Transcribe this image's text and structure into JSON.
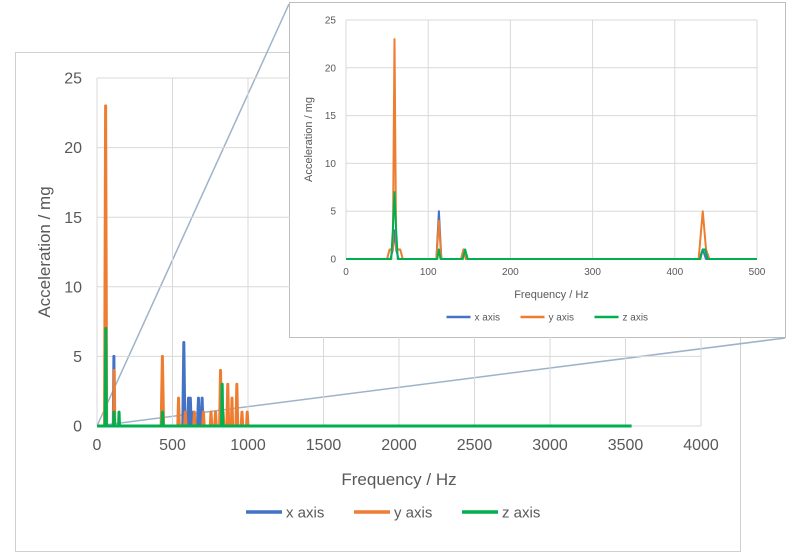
{
  "chart_data": [
    {
      "id": "main",
      "type": "line",
      "xlabel": "Frequency / Hz",
      "ylabel": "Acceleration / mg",
      "xlim": [
        0,
        4000
      ],
      "ylim": [
        0,
        25
      ],
      "xticks": [
        "0",
        "500",
        "1000",
        "1500",
        "2000",
        "2500",
        "3000",
        "3500",
        "4000"
      ],
      "yticks": [
        "0",
        "5",
        "10",
        "15",
        "20",
        "25"
      ],
      "grid": true,
      "legend_position": "bottom",
      "series": [
        {
          "name": "x axis",
          "color": "#4472C4",
          "points": [
            [
              0,
              0
            ],
            [
              55,
              0
            ],
            [
              58,
              0.5
            ],
            [
              60,
              0
            ],
            [
              108,
              0
            ],
            [
              112,
              5
            ],
            [
              115,
              0
            ],
            [
              430,
              0
            ],
            [
              435,
              1
            ],
            [
              440,
              0
            ],
            [
              568,
              0
            ],
            [
              575,
              6
            ],
            [
              582,
              0
            ],
            [
              600,
              0
            ],
            [
              606,
              2
            ],
            [
              612,
              0
            ],
            [
              618,
              2
            ],
            [
              624,
              0
            ],
            [
              635,
              0
            ],
            [
              640,
              1
            ],
            [
              645,
              0
            ],
            [
              665,
              0
            ],
            [
              672,
              2
            ],
            [
              678,
              0
            ],
            [
              690,
              0
            ],
            [
              696,
              2
            ],
            [
              702,
              0
            ],
            [
              1010,
              0
            ],
            [
              3540,
              0
            ]
          ]
        },
        {
          "name": "y axis",
          "color": "#ED7D31",
          "points": [
            [
              0,
              0
            ],
            [
              50,
              0
            ],
            [
              57,
              23
            ],
            [
              64,
              0
            ],
            [
              110,
              0
            ],
            [
              114,
              4
            ],
            [
              118,
              0
            ],
            [
              425,
              0
            ],
            [
              433,
              5
            ],
            [
              441,
              0
            ],
            [
              535,
              0
            ],
            [
              540,
              2
            ],
            [
              545,
              0
            ],
            [
              580,
              0
            ],
            [
              585,
              1
            ],
            [
              590,
              0
            ],
            [
              640,
              0
            ],
            [
              645,
              1
            ],
            [
              650,
              0
            ],
            [
              700,
              0
            ],
            [
              705,
              1
            ],
            [
              710,
              0
            ],
            [
              750,
              0
            ],
            [
              755,
              1
            ],
            [
              760,
              0
            ],
            [
              780,
              0
            ],
            [
              785,
              1
            ],
            [
              790,
              0
            ],
            [
              812,
              0
            ],
            [
              818,
              4
            ],
            [
              824,
              0
            ],
            [
              830,
              0
            ],
            [
              835,
              1
            ],
            [
              840,
              0
            ],
            [
              860,
              0
            ],
            [
              866,
              3
            ],
            [
              872,
              0
            ],
            [
              890,
              0
            ],
            [
              894,
              2
            ],
            [
              898,
              0
            ],
            [
              920,
              0
            ],
            [
              926,
              3
            ],
            [
              932,
              0
            ],
            [
              955,
              0
            ],
            [
              960,
              1
            ],
            [
              965,
              0
            ],
            [
              990,
              0
            ],
            [
              995,
              1
            ],
            [
              1000,
              0
            ],
            [
              3540,
              0
            ]
          ]
        },
        {
          "name": "z axis",
          "color": "#00B050",
          "points": [
            [
              0,
              0
            ],
            [
              54,
              0
            ],
            [
              58,
              7
            ],
            [
              62,
              0
            ],
            [
              110,
              0
            ],
            [
              113,
              1
            ],
            [
              116,
              0
            ],
            [
              143,
              0
            ],
            [
              146,
              1
            ],
            [
              149,
              0
            ],
            [
              430,
              0
            ],
            [
              434,
              1
            ],
            [
              438,
              0
            ],
            [
              825,
              0
            ],
            [
              829,
              3
            ],
            [
              833,
              0
            ],
            [
              3540,
              0
            ]
          ]
        }
      ]
    },
    {
      "id": "inset",
      "type": "line",
      "xlabel": "Frequency / Hz",
      "ylabel": "Acceleration / mg",
      "xlim": [
        0,
        500
      ],
      "ylim": [
        0,
        25
      ],
      "xticks": [
        "0",
        "100",
        "200",
        "300",
        "400",
        "500"
      ],
      "yticks": [
        "0",
        "5",
        "10",
        "15",
        "20",
        "25"
      ],
      "grid": true,
      "legend_position": "bottom",
      "series": [
        {
          "name": "x axis",
          "color": "#4472C4",
          "points": [
            [
              0,
              0
            ],
            [
              54,
              0
            ],
            [
              57,
              1
            ],
            [
              59,
              3
            ],
            [
              61,
              1
            ],
            [
              64,
              0
            ],
            [
              110,
              0
            ],
            [
              113,
              5
            ],
            [
              116,
              0
            ],
            [
              140,
              0
            ],
            [
              143,
              1
            ],
            [
              146,
              0
            ],
            [
              430,
              0
            ],
            [
              434,
              1
            ],
            [
              438,
              0
            ],
            [
              500,
              0
            ]
          ]
        },
        {
          "name": "y axis",
          "color": "#ED7D31",
          "points": [
            [
              0,
              0
            ],
            [
              50,
              0
            ],
            [
              53,
              1
            ],
            [
              57,
              1
            ],
            [
              59,
              23
            ],
            [
              61,
              1
            ],
            [
              66,
              1
            ],
            [
              69,
              0
            ],
            [
              110,
              0
            ],
            [
              113,
              4
            ],
            [
              116,
              0
            ],
            [
              140,
              0
            ],
            [
              143,
              1
            ],
            [
              146,
              0
            ],
            [
              429,
              0
            ],
            [
              434,
              5
            ],
            [
              438,
              1
            ],
            [
              442,
              0
            ],
            [
              500,
              0
            ]
          ]
        },
        {
          "name": "z axis",
          "color": "#00B050",
          "points": [
            [
              0,
              0
            ],
            [
              55,
              0
            ],
            [
              57,
              3
            ],
            [
              59,
              7
            ],
            [
              61,
              3
            ],
            [
              63,
              0
            ],
            [
              111,
              0
            ],
            [
              113,
              1
            ],
            [
              115,
              0
            ],
            [
              142,
              0
            ],
            [
              145,
              1
            ],
            [
              148,
              0
            ],
            [
              431,
              0
            ],
            [
              434,
              1
            ],
            [
              437,
              1
            ],
            [
              440,
              0
            ],
            [
              500,
              0
            ]
          ]
        }
      ]
    }
  ]
}
